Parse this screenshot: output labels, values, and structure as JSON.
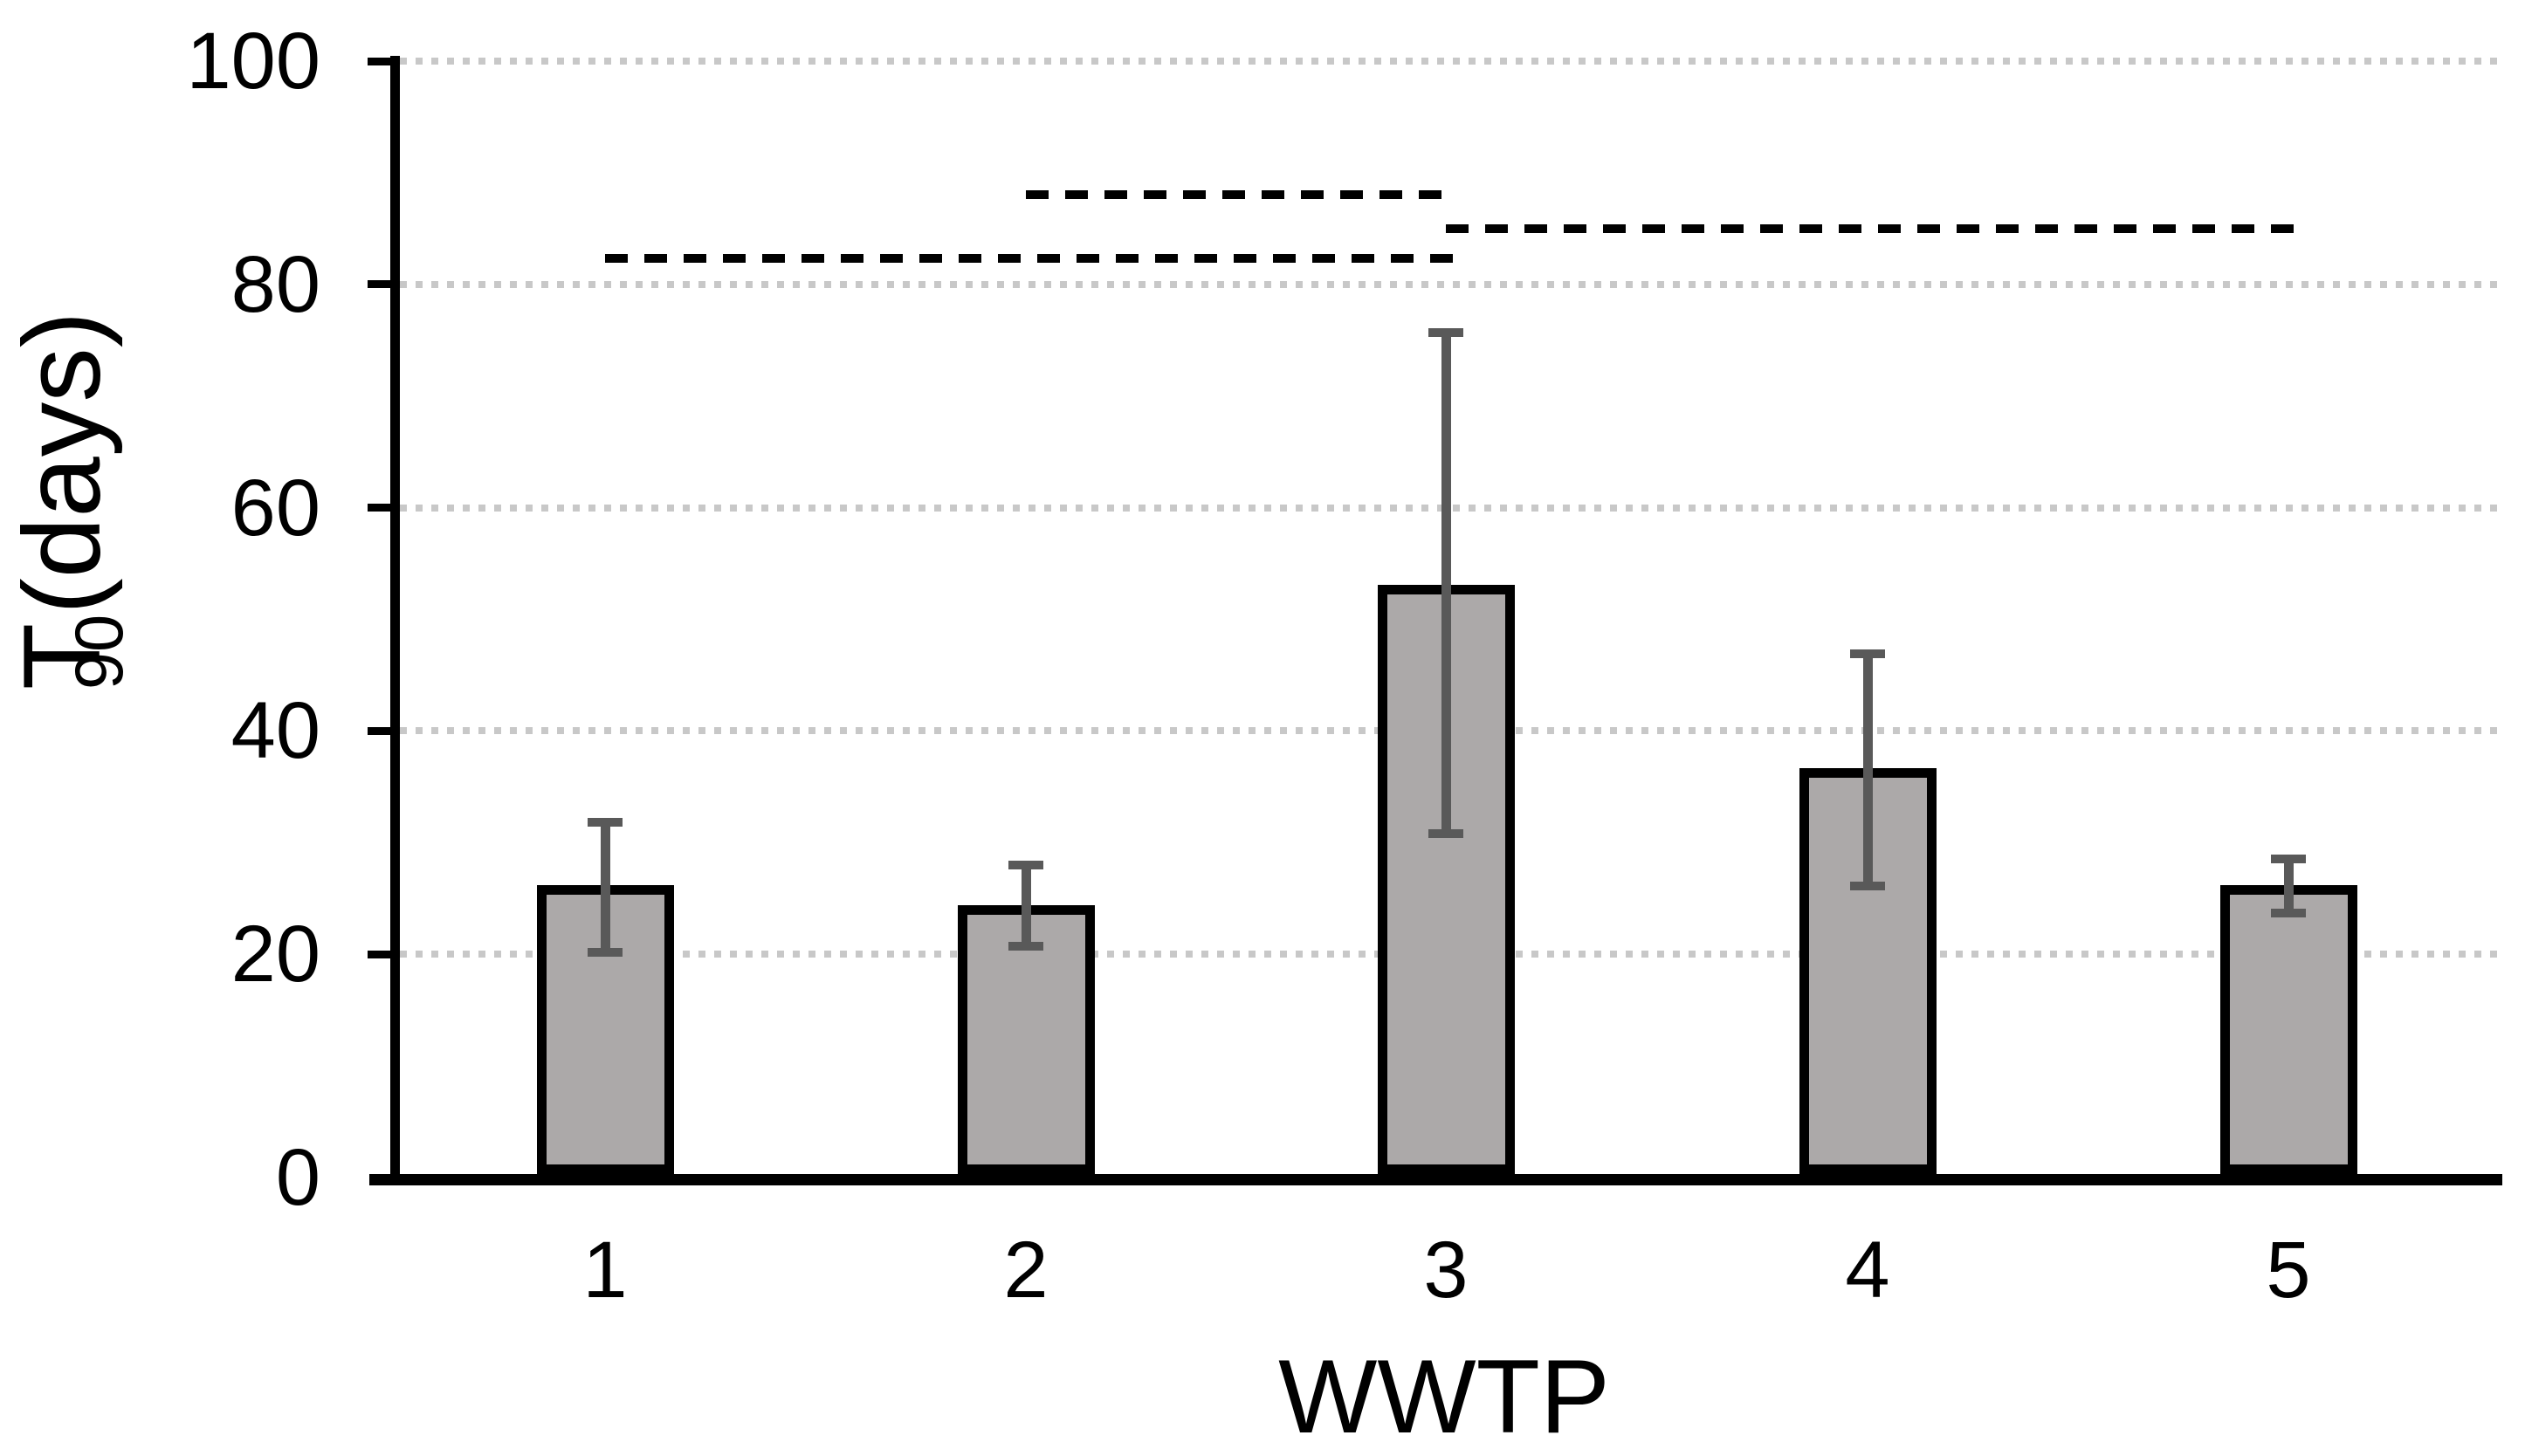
{
  "chart_data": {
    "type": "bar",
    "title": "",
    "xlabel": "WWTP",
    "ylabel": "T90 (days)",
    "ylabel_parts": {
      "main": "T",
      "sub": "90",
      "rest": " (days)"
    },
    "categories": [
      "1",
      "2",
      "3",
      "4",
      "5"
    ],
    "series": [
      {
        "name": "T90",
        "values": [
          26.2,
          24.4,
          53.1,
          36.7,
          26.2
        ],
        "error_low": [
          20.2,
          20.7,
          30.8,
          26.1,
          23.7
        ],
        "error_high": [
          31.8,
          28.0,
          75.7,
          46.9,
          28.5
        ]
      }
    ],
    "ylim": [
      0,
      100
    ],
    "yticks": [
      0,
      20,
      40,
      60,
      80,
      100
    ],
    "grid": "horizontal-dotted",
    "legend": "none",
    "significance_lines": [
      {
        "level": 82.3,
        "from_category": "1",
        "to_category": "3",
        "style": "dashed"
      },
      {
        "level": 88.0,
        "from_category": "2",
        "to_category": "3",
        "style": "dashed"
      },
      {
        "level": 85.0,
        "from_category": "3",
        "to_category": "5",
        "style": "dashed"
      }
    ],
    "colors": {
      "bar_fill": "#ACA9A9",
      "bar_border": "#000000",
      "error_bar": "#595959",
      "gridline": "#C8C8C8",
      "significance_line": "#000000",
      "axis": "#000000",
      "background": "#FFFFFF"
    }
  }
}
